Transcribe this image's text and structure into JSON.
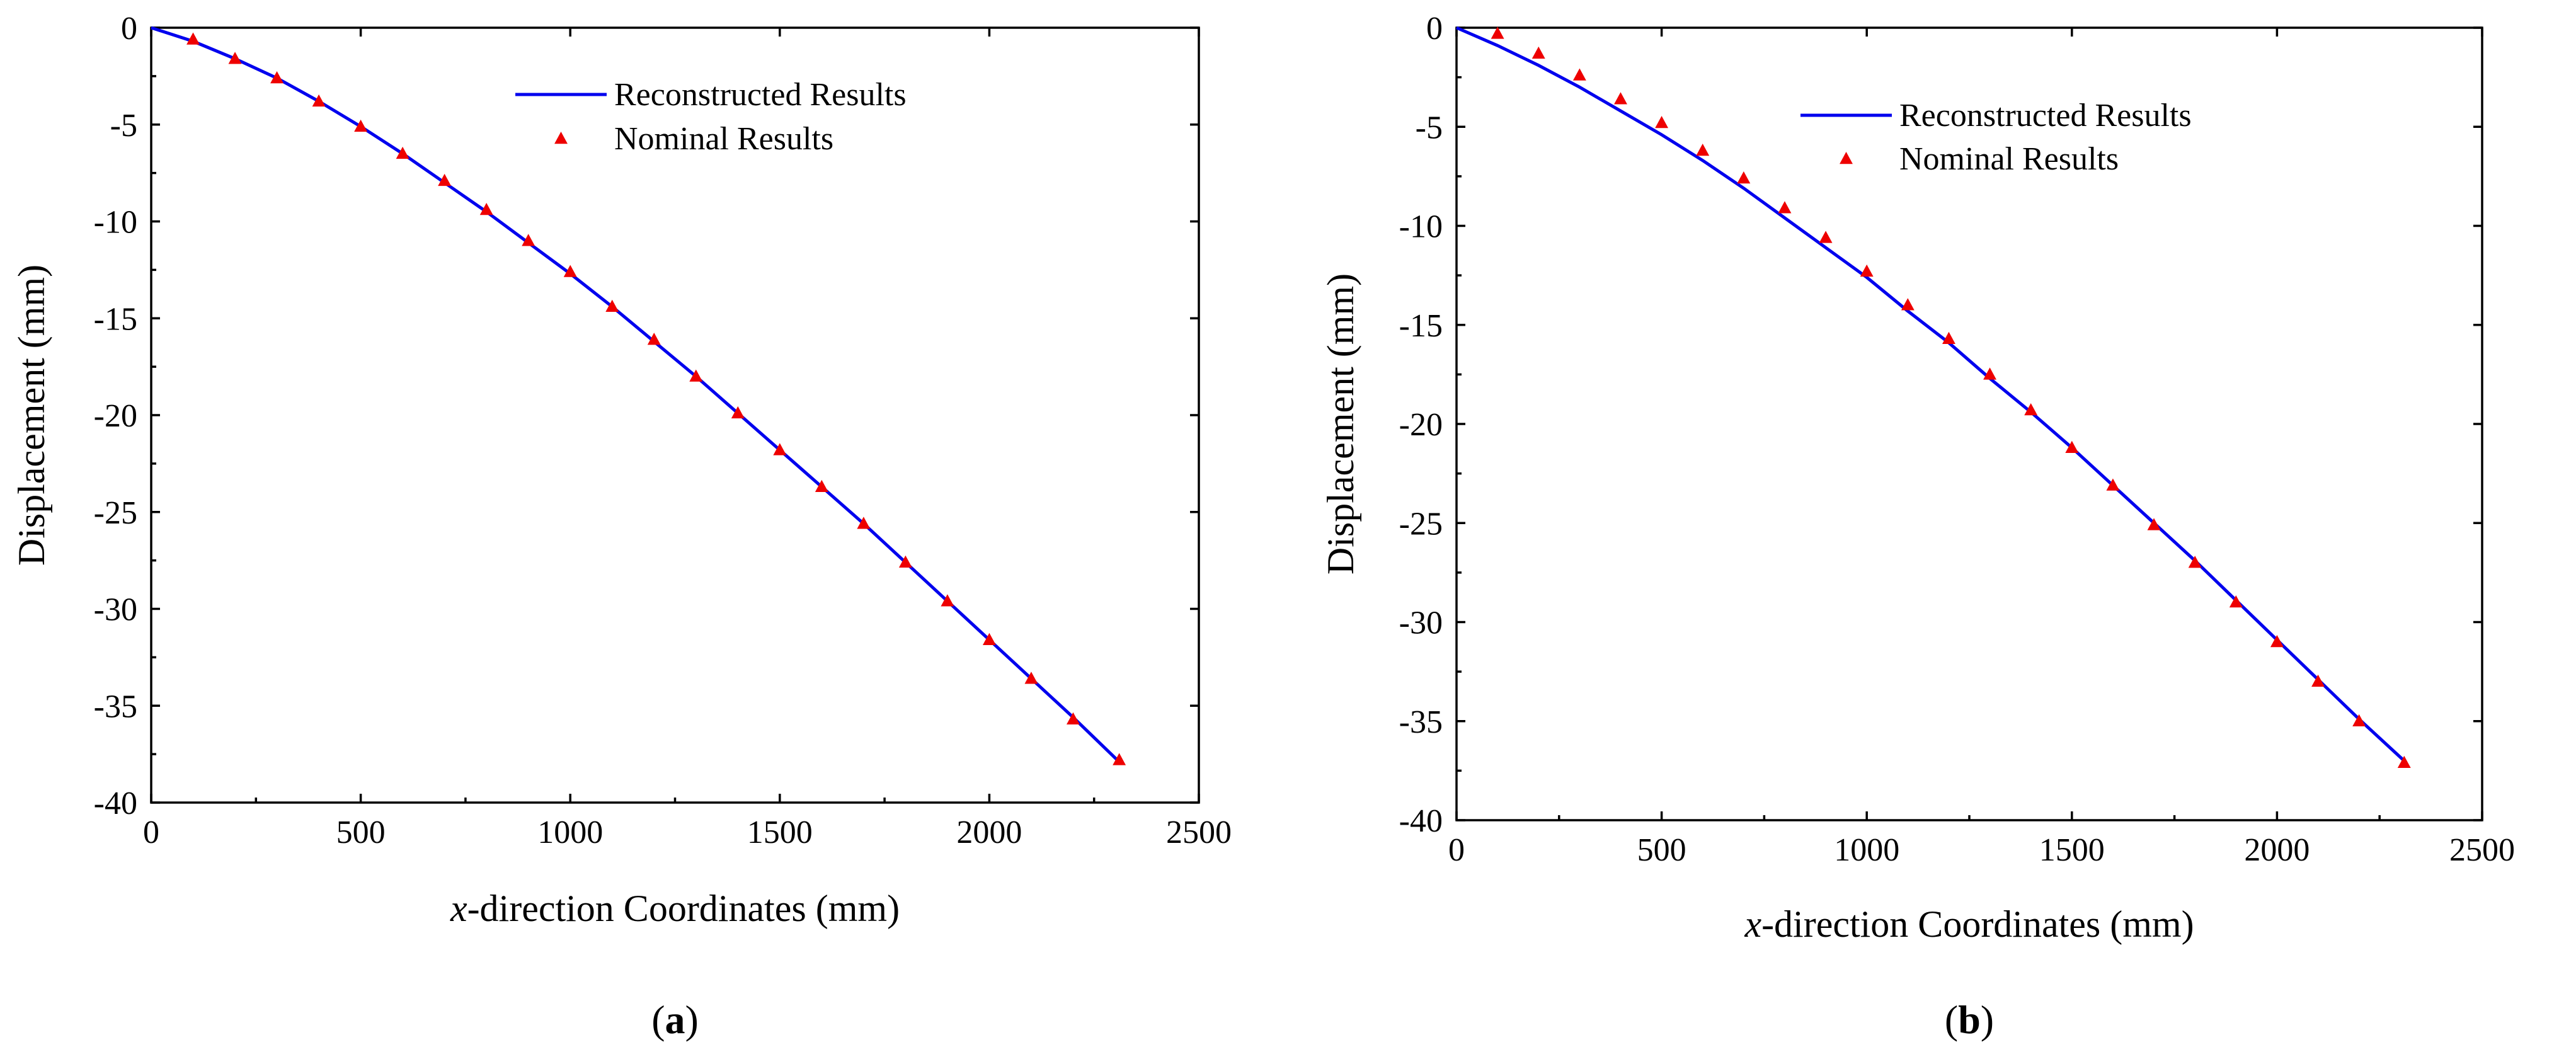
{
  "colors": {
    "line": "#0000ee",
    "marker": "#ee0000",
    "axis": "#000000"
  },
  "chart_data": [
    {
      "type": "line",
      "panel_label": {
        "open": "(",
        "letter": "a",
        "close": ")"
      },
      "xlabel": {
        "italic": "x",
        "rest": "-direction Coordinates (mm)"
      },
      "ylabel": "Displacement (mm)",
      "xlim": [
        0,
        2500
      ],
      "ylim": [
        -40,
        0
      ],
      "xticks": [
        0,
        500,
        1000,
        1500,
        2000,
        2500
      ],
      "yticks": [
        0,
        -5,
        -10,
        -15,
        -20,
        -25,
        -30,
        -35,
        -40
      ],
      "legend_position": "top-right",
      "series": [
        {
          "name": "Reconstructed Results",
          "kind": "line",
          "x": [
            0,
            100,
            200,
            300,
            400,
            500,
            600,
            700,
            800,
            900,
            1000,
            1100,
            1200,
            1300,
            1400,
            1500,
            1600,
            1700,
            1800,
            1900,
            2000,
            2100,
            2200,
            2310
          ],
          "y": [
            0,
            -0.7,
            -1.6,
            -2.6,
            -3.8,
            -5.1,
            -6.5,
            -8.0,
            -9.5,
            -11.1,
            -12.7,
            -14.4,
            -16.2,
            -18.0,
            -19.9,
            -21.8,
            -23.7,
            -25.6,
            -27.6,
            -29.6,
            -31.6,
            -33.6,
            -35.6,
            -37.9
          ]
        },
        {
          "name": "Nominal Results",
          "kind": "scatter",
          "x": [
            100,
            200,
            300,
            400,
            500,
            600,
            700,
            800,
            900,
            1000,
            1100,
            1200,
            1300,
            1400,
            1500,
            1600,
            1700,
            1800,
            1900,
            2000,
            2100,
            2200,
            2310
          ],
          "y": [
            -0.6,
            -1.6,
            -2.6,
            -3.8,
            -5.1,
            -6.5,
            -7.9,
            -9.4,
            -11.0,
            -12.6,
            -14.4,
            -16.1,
            -18.0,
            -19.9,
            -21.8,
            -23.7,
            -25.6,
            -27.6,
            -29.6,
            -31.6,
            -33.6,
            -35.7,
            -37.8
          ]
        }
      ]
    },
    {
      "type": "line",
      "panel_label": {
        "open": "(",
        "letter": "b",
        "close": ")"
      },
      "xlabel": {
        "italic": "x",
        "rest": "-direction Coordinates (mm)"
      },
      "ylabel": "Displacement (mm)",
      "xlim": [
        0,
        2500
      ],
      "ylim": [
        -40,
        0
      ],
      "xticks": [
        0,
        500,
        1000,
        1500,
        2000,
        2500
      ],
      "yticks": [
        0,
        -5,
        -10,
        -15,
        -20,
        -25,
        -30,
        -35,
        -40
      ],
      "legend_position": "top-right",
      "series": [
        {
          "name": "Reconstructed Results",
          "kind": "line",
          "x": [
            0,
            100,
            200,
            300,
            400,
            500,
            600,
            700,
            800,
            900,
            1000,
            1100,
            1200,
            1300,
            1400,
            1500,
            1600,
            1700,
            1800,
            1900,
            2000,
            2100,
            2200,
            2310
          ],
          "y": [
            0,
            -0.9,
            -1.9,
            -3.0,
            -4.2,
            -5.4,
            -6.7,
            -8.1,
            -9.6,
            -11.1,
            -12.6,
            -14.3,
            -15.9,
            -17.7,
            -19.4,
            -21.2,
            -23.1,
            -25.0,
            -26.9,
            -28.9,
            -30.9,
            -32.9,
            -34.9,
            -37.0
          ]
        },
        {
          "name": "Nominal Results",
          "kind": "scatter",
          "x": [
            100,
            200,
            300,
            400,
            500,
            600,
            700,
            800,
            900,
            1000,
            1100,
            1200,
            1300,
            1400,
            1500,
            1600,
            1700,
            1800,
            1900,
            2000,
            2100,
            2200,
            2310
          ],
          "y": [
            -0.3,
            -1.3,
            -2.4,
            -3.6,
            -4.8,
            -6.2,
            -7.6,
            -9.1,
            -10.6,
            -12.3,
            -14.0,
            -15.7,
            -17.5,
            -19.3,
            -21.2,
            -23.1,
            -25.1,
            -27.0,
            -29.0,
            -31.0,
            -33.0,
            -35.0,
            -37.1
          ]
        }
      ]
    }
  ]
}
